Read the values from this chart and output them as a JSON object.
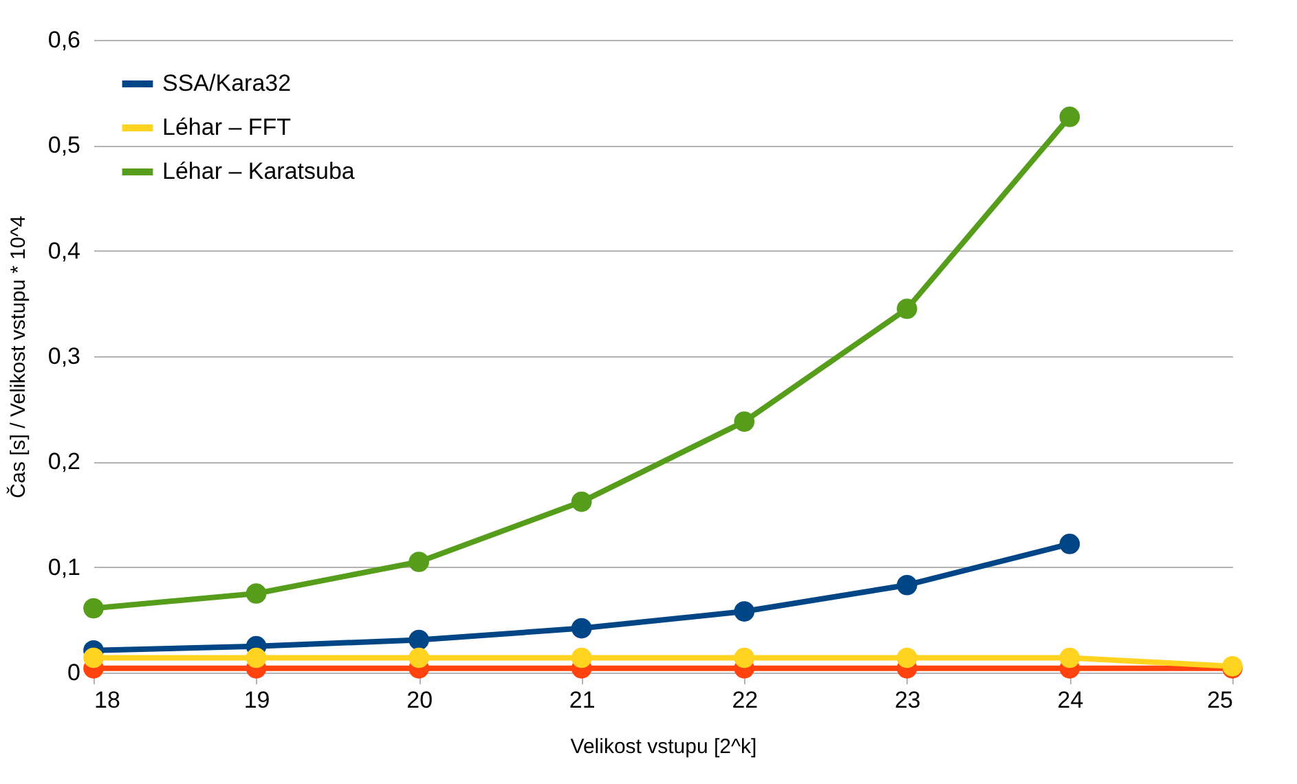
{
  "chart_data": {
    "type": "line",
    "xlabel": "Velikost vstupu [2^k]",
    "ylabel": "Čas [s] / Velikost vstupu * 10^4",
    "x": [
      18,
      19,
      20,
      21,
      22,
      23,
      24,
      25
    ],
    "xlim": [
      18,
      25
    ],
    "xticks": [
      18,
      19,
      20,
      21,
      22,
      23,
      24,
      25
    ],
    "ylim": [
      0,
      0.6
    ],
    "yticks": [
      {
        "value": 0,
        "label": "0"
      },
      {
        "value": 0.1,
        "label": "0,1"
      },
      {
        "value": 0.2,
        "label": "0,2"
      },
      {
        "value": 0.3,
        "label": "0,3"
      },
      {
        "value": 0.4,
        "label": "0,4"
      },
      {
        "value": 0.5,
        "label": "0,5"
      },
      {
        "value": 0.6,
        "label": "0,6"
      }
    ],
    "grid": "y",
    "legend": "top left",
    "marker": "circle",
    "line_style": "solid",
    "series": [
      {
        "name": "SSA/Kara32",
        "color": "#004586",
        "values": [
          0.021,
          0.025,
          0.031,
          0.042,
          0.058,
          0.083,
          0.122,
          null
        ]
      },
      {
        "color": "#ff420e",
        "values": [
          0.004,
          0.004,
          0.004,
          0.004,
          0.004,
          0.004,
          0.004,
          0.004
        ]
      },
      {
        "name": "Léhar – FFT",
        "color": "#ffd320",
        "values": [
          0.014,
          0.014,
          0.014,
          0.014,
          0.014,
          0.014,
          0.014,
          0.006
        ]
      },
      {
        "name": "Léhar – Karatsuba",
        "color": "#579d1c",
        "values": [
          0.061,
          0.075,
          0.105,
          0.162,
          0.238,
          0.345,
          0.527,
          null
        ]
      }
    ]
  }
}
